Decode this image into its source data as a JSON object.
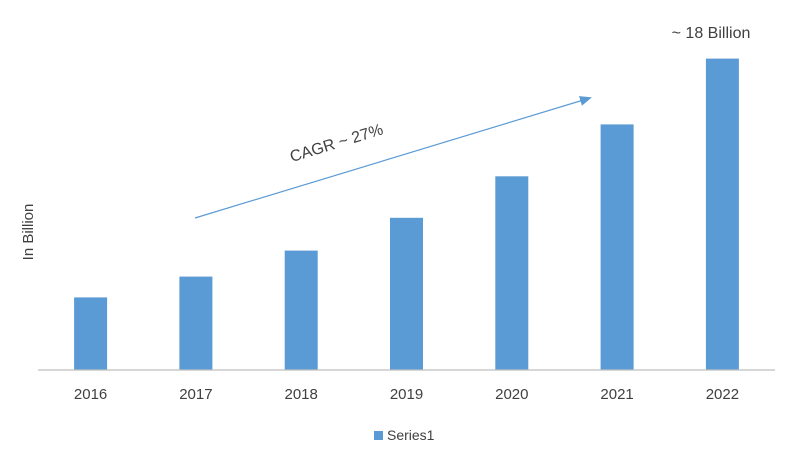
{
  "chart_data": {
    "type": "bar",
    "title": "",
    "xlabel": "",
    "ylabel": "In Billion",
    "categories": [
      "2016",
      "2017",
      "2018",
      "2019",
      "2020",
      "2021",
      "2022"
    ],
    "series": [
      {
        "name": "Series1",
        "values": [
          4.2,
          5.4,
          6.9,
          8.8,
          11.2,
          14.2,
          18.0
        ]
      }
    ],
    "ylim": [
      0,
      18.5
    ],
    "grid": false,
    "legend_position": "bottom",
    "bar_color": "#5b9bd5",
    "annotations": {
      "cagr": "CAGR ~ 27%",
      "last_value": "~ 18 Billion"
    },
    "colors": {
      "axis": "#bfbfbf",
      "arrow": "#5b9bd5",
      "text": "#404040"
    }
  }
}
